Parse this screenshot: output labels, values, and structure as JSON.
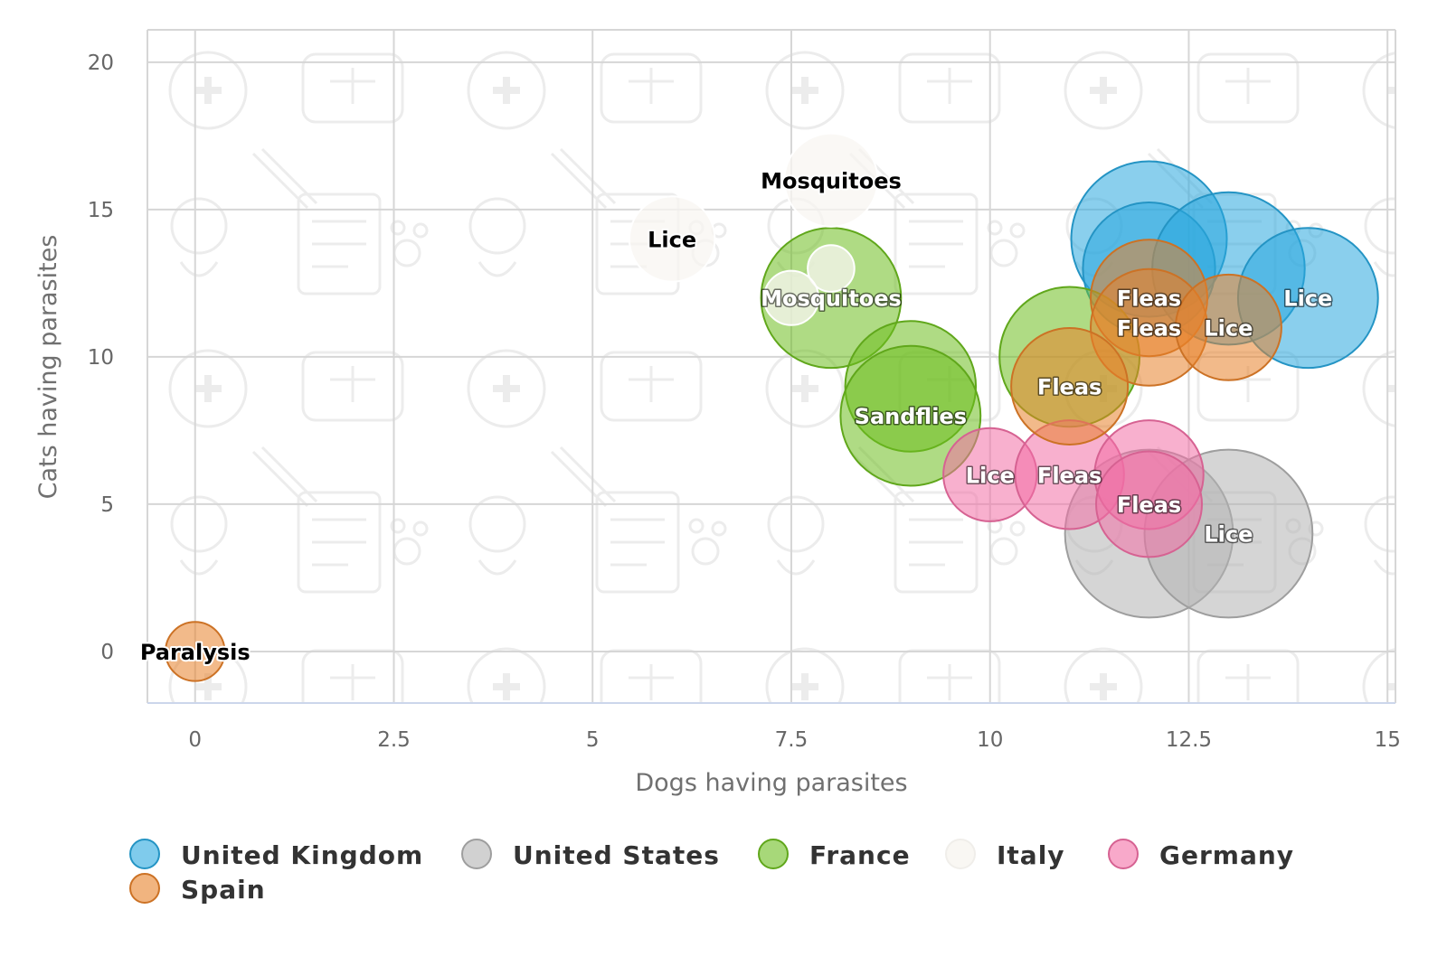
{
  "chart_data": {
    "type": "scatter",
    "variant": "bubble",
    "title": "",
    "xlabel": "Dogs having parasites",
    "ylabel": "Cats having parasites",
    "xlim": [
      -0.6,
      15.1
    ],
    "ylim": [
      -1.75,
      21.1
    ],
    "xticks": [
      "0",
      "2.5",
      "5",
      "7.5",
      "10",
      "12.5",
      "15"
    ],
    "xtick_values": [
      0,
      2.5,
      5,
      7.5,
      10,
      12.5,
      15
    ],
    "yticks": [
      "0",
      "5",
      "10",
      "15",
      "20"
    ],
    "ytick_values": [
      0,
      5,
      10,
      15,
      20
    ],
    "grid": true,
    "legend_position": "bottom-left",
    "background": "faint veterinary icon pattern",
    "series": [
      {
        "name": "United Kingdom",
        "color": "#29a8df",
        "points": [
          {
            "x": 12,
            "y": 14,
            "z": 1.0,
            "label": ""
          },
          {
            "x": 12,
            "y": 13,
            "z": 0.85,
            "label": ""
          },
          {
            "x": 13,
            "y": 13,
            "z": 0.98,
            "label": ""
          },
          {
            "x": 14,
            "y": 12,
            "z": 0.9,
            "label": "Lice"
          }
        ]
      },
      {
        "name": "United States",
        "color": "#b3b3b3",
        "points": [
          {
            "x": 12,
            "y": 4,
            "z": 1.08,
            "label": ""
          },
          {
            "x": 13,
            "y": 4,
            "z": 1.08,
            "label": "Lice"
          }
        ]
      },
      {
        "name": "France",
        "color": "#6dbe1f",
        "points": [
          {
            "x": 8,
            "y": 12,
            "z": 0.9,
            "label": ""
          },
          {
            "x": 9,
            "y": 9,
            "z": 0.84,
            "label": ""
          },
          {
            "x": 9,
            "y": 8,
            "z": 0.9,
            "label": "Sandflies"
          },
          {
            "x": 11,
            "y": 10,
            "z": 0.9,
            "label": ""
          }
        ]
      },
      {
        "name": "Italy",
        "color": "#f8f6f2",
        "points": [
          {
            "x": 8,
            "y": 16,
            "z": 0.6,
            "label": "Mosquitoes"
          },
          {
            "x": 6,
            "y": 14,
            "z": 0.55,
            "label": "Lice"
          },
          {
            "x": 8,
            "y": 13,
            "z": 0.3,
            "label": ""
          },
          {
            "x": 7.5,
            "y": 12,
            "z": 0.35,
            "label": ""
          }
        ]
      },
      {
        "name": "Germany",
        "color": "#f36fa6",
        "points": [
          {
            "x": 10,
            "y": 6,
            "z": 0.6,
            "label": "Lice"
          },
          {
            "x": 11,
            "y": 6,
            "z": 0.7,
            "label": "Fleas"
          },
          {
            "x": 12,
            "y": 6,
            "z": 0.7,
            "label": ""
          },
          {
            "x": 12,
            "y": 5,
            "z": 0.68,
            "label": "Fleas"
          }
        ]
      },
      {
        "name": "Spain",
        "color": "#e8822a",
        "points": [
          {
            "x": 0,
            "y": 0,
            "z": 0.38,
            "label": "Paralysis"
          },
          {
            "x": 12,
            "y": 12,
            "z": 0.75,
            "label": "Fleas"
          },
          {
            "x": 12,
            "y": 11,
            "z": 0.75,
            "label": "Fleas"
          },
          {
            "x": 13,
            "y": 11,
            "z": 0.68,
            "label": "Lice"
          },
          {
            "x": 11,
            "y": 9,
            "z": 0.75,
            "label": "Fleas"
          }
        ]
      }
    ],
    "extra_labels": [
      {
        "x": 8,
        "y": 12,
        "label": "Mosquitoes"
      }
    ]
  }
}
